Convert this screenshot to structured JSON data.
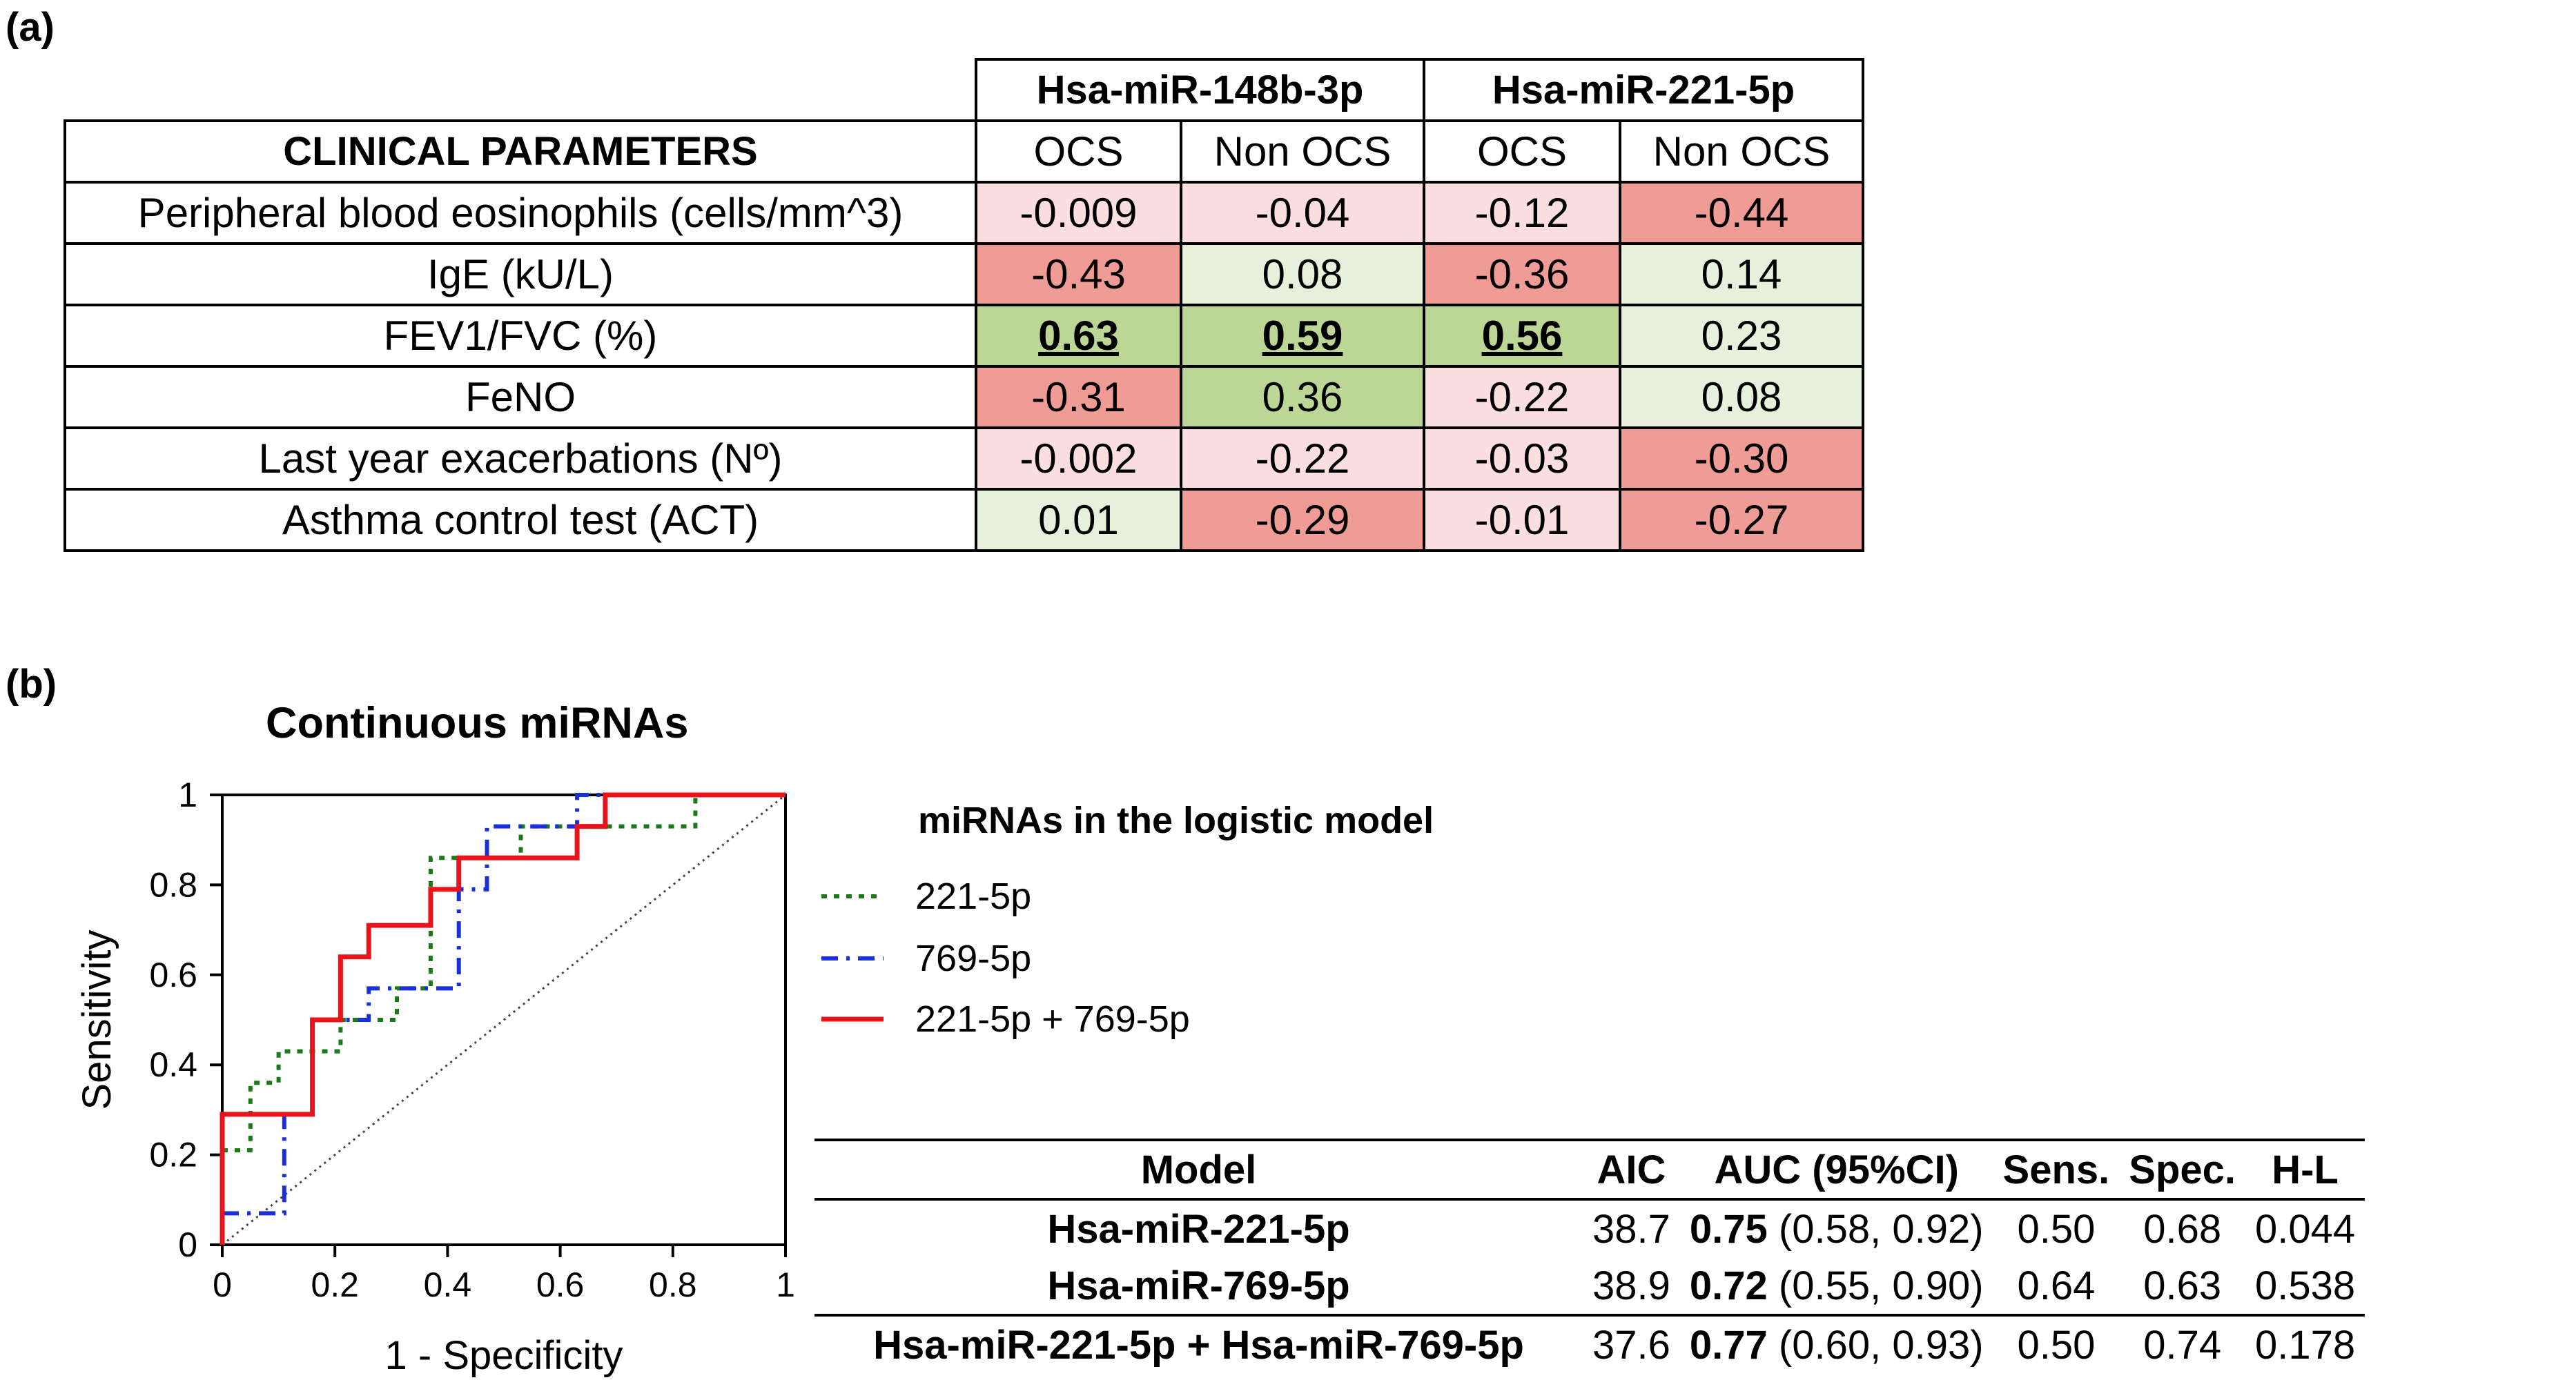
{
  "panel_a_label": "(a)",
  "panel_b_label": "(b)",
  "heatmap": {
    "header_corner": "CLINICAL PARAMETERS",
    "groups": [
      "Hsa-miR-148b-3p",
      "Hsa-miR-221-5p"
    ],
    "subheaders": [
      "OCS",
      "Non OCS",
      "OCS",
      "Non OCS"
    ],
    "rows": [
      {
        "label": "Peripheral blood eosinophils (cells/mm^3)",
        "values": [
          "-0.009",
          "-0.04",
          "-0.12",
          "-0.44"
        ],
        "colors": [
          "#fbdfe0",
          "#fbdfe0",
          "#fbdfe0",
          "#ef9b96"
        ],
        "bold": [
          false,
          false,
          false,
          false
        ]
      },
      {
        "label": "IgE (kU/L)",
        "values": [
          "-0.43",
          "0.08",
          "-0.36",
          "0.14"
        ],
        "colors": [
          "#ef9b96",
          "#e6f0db",
          "#ef9b96",
          "#e6f0db"
        ],
        "bold": [
          false,
          false,
          false,
          false
        ]
      },
      {
        "label": "FEV1/FVC (%)",
        "values": [
          "0.63",
          "0.59",
          "0.56",
          "0.23"
        ],
        "colors": [
          "#bcd696",
          "#bcd696",
          "#bcd696",
          "#e6f0db"
        ],
        "bold": [
          true,
          true,
          true,
          false
        ]
      },
      {
        "label": "FeNO",
        "values": [
          "-0.31",
          "0.36",
          "-0.22",
          "0.08"
        ],
        "colors": [
          "#ef9b96",
          "#bcd696",
          "#fbdfe0",
          "#e6f0db"
        ],
        "bold": [
          false,
          false,
          false,
          false
        ]
      },
      {
        "label": "Last year exacerbations (Nº)",
        "values": [
          "-0.002",
          "-0.22",
          "-0.03",
          "-0.30"
        ],
        "colors": [
          "#fbdfe0",
          "#fbdfe0",
          "#fbdfe0",
          "#ef9b96"
        ],
        "bold": [
          false,
          false,
          false,
          false
        ]
      },
      {
        "label": "Asthma control test (ACT)",
        "values": [
          "0.01",
          "-0.29",
          "-0.01",
          "-0.27"
        ],
        "colors": [
          "#e6f0db",
          "#ef9b96",
          "#fbdfe0",
          "#ef9b96"
        ],
        "bold": [
          false,
          false,
          false,
          false
        ]
      }
    ]
  },
  "chart_data": {
    "type": "line",
    "title": "Continuous miRNAs",
    "xlabel": "1 - Specificity",
    "ylabel": "Sensitivity",
    "xlim": [
      0,
      1
    ],
    "ylim": [
      0,
      1
    ],
    "x_ticks": [
      "0",
      "0.2",
      "0.4",
      "0.6",
      "0.8",
      "1"
    ],
    "y_ticks": [
      "0",
      "0.2",
      "0.4",
      "0.6",
      "0.8",
      "1"
    ],
    "legend_title": "miRNAs in the logistic model",
    "legend_position": "right",
    "series": [
      {
        "name": "221-5p",
        "color": "#1a7a1a",
        "style": "dotted",
        "points": [
          [
            0,
            0.21
          ],
          [
            0.05,
            0.21
          ],
          [
            0.05,
            0.36
          ],
          [
            0.1,
            0.36
          ],
          [
            0.1,
            0.43
          ],
          [
            0.21,
            0.43
          ],
          [
            0.21,
            0.5
          ],
          [
            0.31,
            0.5
          ],
          [
            0.31,
            0.57
          ],
          [
            0.37,
            0.57
          ],
          [
            0.37,
            0.64
          ],
          [
            0.37,
            0.79
          ],
          [
            0.37,
            0.86
          ],
          [
            0.53,
            0.86
          ],
          [
            0.53,
            0.93
          ],
          [
            0.84,
            0.93
          ],
          [
            0.84,
            1.0
          ],
          [
            1,
            1
          ]
        ]
      },
      {
        "name": "769-5p",
        "color": "#1a2fdc",
        "style": "dashdot",
        "points": [
          [
            0,
            0.07
          ],
          [
            0.11,
            0.07
          ],
          [
            0.11,
            0.29
          ],
          [
            0.16,
            0.29
          ],
          [
            0.16,
            0.5
          ],
          [
            0.26,
            0.5
          ],
          [
            0.26,
            0.57
          ],
          [
            0.42,
            0.57
          ],
          [
            0.42,
            0.79
          ],
          [
            0.47,
            0.79
          ],
          [
            0.47,
            0.93
          ],
          [
            0.63,
            0.93
          ],
          [
            0.63,
            1.0
          ],
          [
            1,
            1
          ]
        ]
      },
      {
        "name": "221-5p + 769-5p",
        "color": "#e8141c",
        "style": "solid",
        "points": [
          [
            0,
            0
          ],
          [
            0,
            0.29
          ],
          [
            0.16,
            0.29
          ],
          [
            0.16,
            0.5
          ],
          [
            0.21,
            0.5
          ],
          [
            0.21,
            0.64
          ],
          [
            0.26,
            0.64
          ],
          [
            0.26,
            0.71
          ],
          [
            0.37,
            0.71
          ],
          [
            0.37,
            0.79
          ],
          [
            0.42,
            0.79
          ],
          [
            0.42,
            0.86
          ],
          [
            0.63,
            0.86
          ],
          [
            0.63,
            0.93
          ],
          [
            0.68,
            0.93
          ],
          [
            0.68,
            1.0
          ],
          [
            1,
            1
          ]
        ]
      }
    ],
    "diagonal": true
  },
  "model_table": {
    "headers": [
      "Model",
      "AIC",
      "AUC (95%CI)",
      "Sens.",
      "Spec.",
      "H-L"
    ],
    "rows": [
      {
        "model": "Hsa-miR-221-5p",
        "aic": "38.7",
        "auc": "0.75",
        "ci": "(0.58, 0.92)",
        "sens": "0.50",
        "spec": "0.68",
        "hl": "0.044"
      },
      {
        "model": "Hsa-miR-769-5p",
        "aic": "38.9",
        "auc": "0.72",
        "ci": "(0.55, 0.90)",
        "sens": "0.64",
        "spec": "0.63",
        "hl": "0.538"
      },
      {
        "model": "Hsa-miR-221-5p + Hsa-miR-769-5p",
        "aic": "37.6",
        "auc": "0.77",
        "ci": "(0.60, 0.93)",
        "sens": "0.50",
        "spec": "0.74",
        "hl": "0.178"
      }
    ]
  }
}
